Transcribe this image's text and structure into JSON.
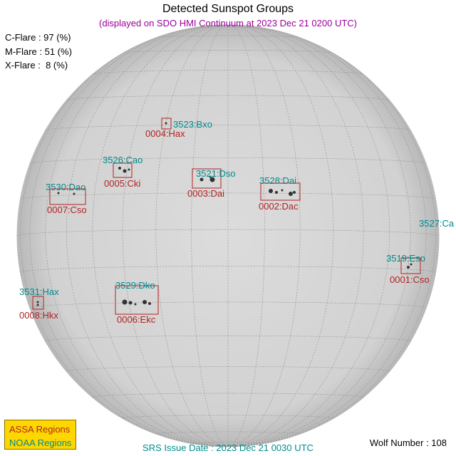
{
  "header": {
    "title": "Detected Sunspot Groups",
    "subtitle": "(displayed on SDO HMI Continuum at 2023 Dec 21 0200 UTC)"
  },
  "flares": {
    "c": "C-Flare : 97 (%)",
    "m": "M-Flare : 51 (%)",
    "x": "X-Flare :  8 (%)"
  },
  "colors": {
    "assa": "#b22222",
    "noaa": "#008b8b",
    "legend_bg": "#ffd700",
    "disk": "#d7d7d7"
  },
  "regions": [
    {
      "noaa": "3523:Bxo",
      "assa": "0004:Hax"
    },
    {
      "noaa": "3526:Cao",
      "assa": "0005:Cki"
    },
    {
      "noaa": "3521:Dso",
      "assa": "0003:Dai"
    },
    {
      "noaa": "3528:Dai",
      "assa": "0002:Dac"
    },
    {
      "noaa": "3530:Dao",
      "assa": "0007:Cso"
    },
    {
      "noaa": "3527:Ca",
      "assa": ""
    },
    {
      "noaa": "3519:Eso",
      "assa": "0001:Cso"
    },
    {
      "noaa": "3529:Dko",
      "assa": "0006:Ekc"
    },
    {
      "noaa": "3531:Hax",
      "assa": "0008:Hkx"
    }
  ],
  "legend": {
    "assa": "ASSA Regions",
    "noaa": "NOAA Regions"
  },
  "footer": {
    "srs": "SRS Issue Date : 2023 Dec 21 0030 UTC",
    "wolf": "Wolf Number : 108"
  }
}
